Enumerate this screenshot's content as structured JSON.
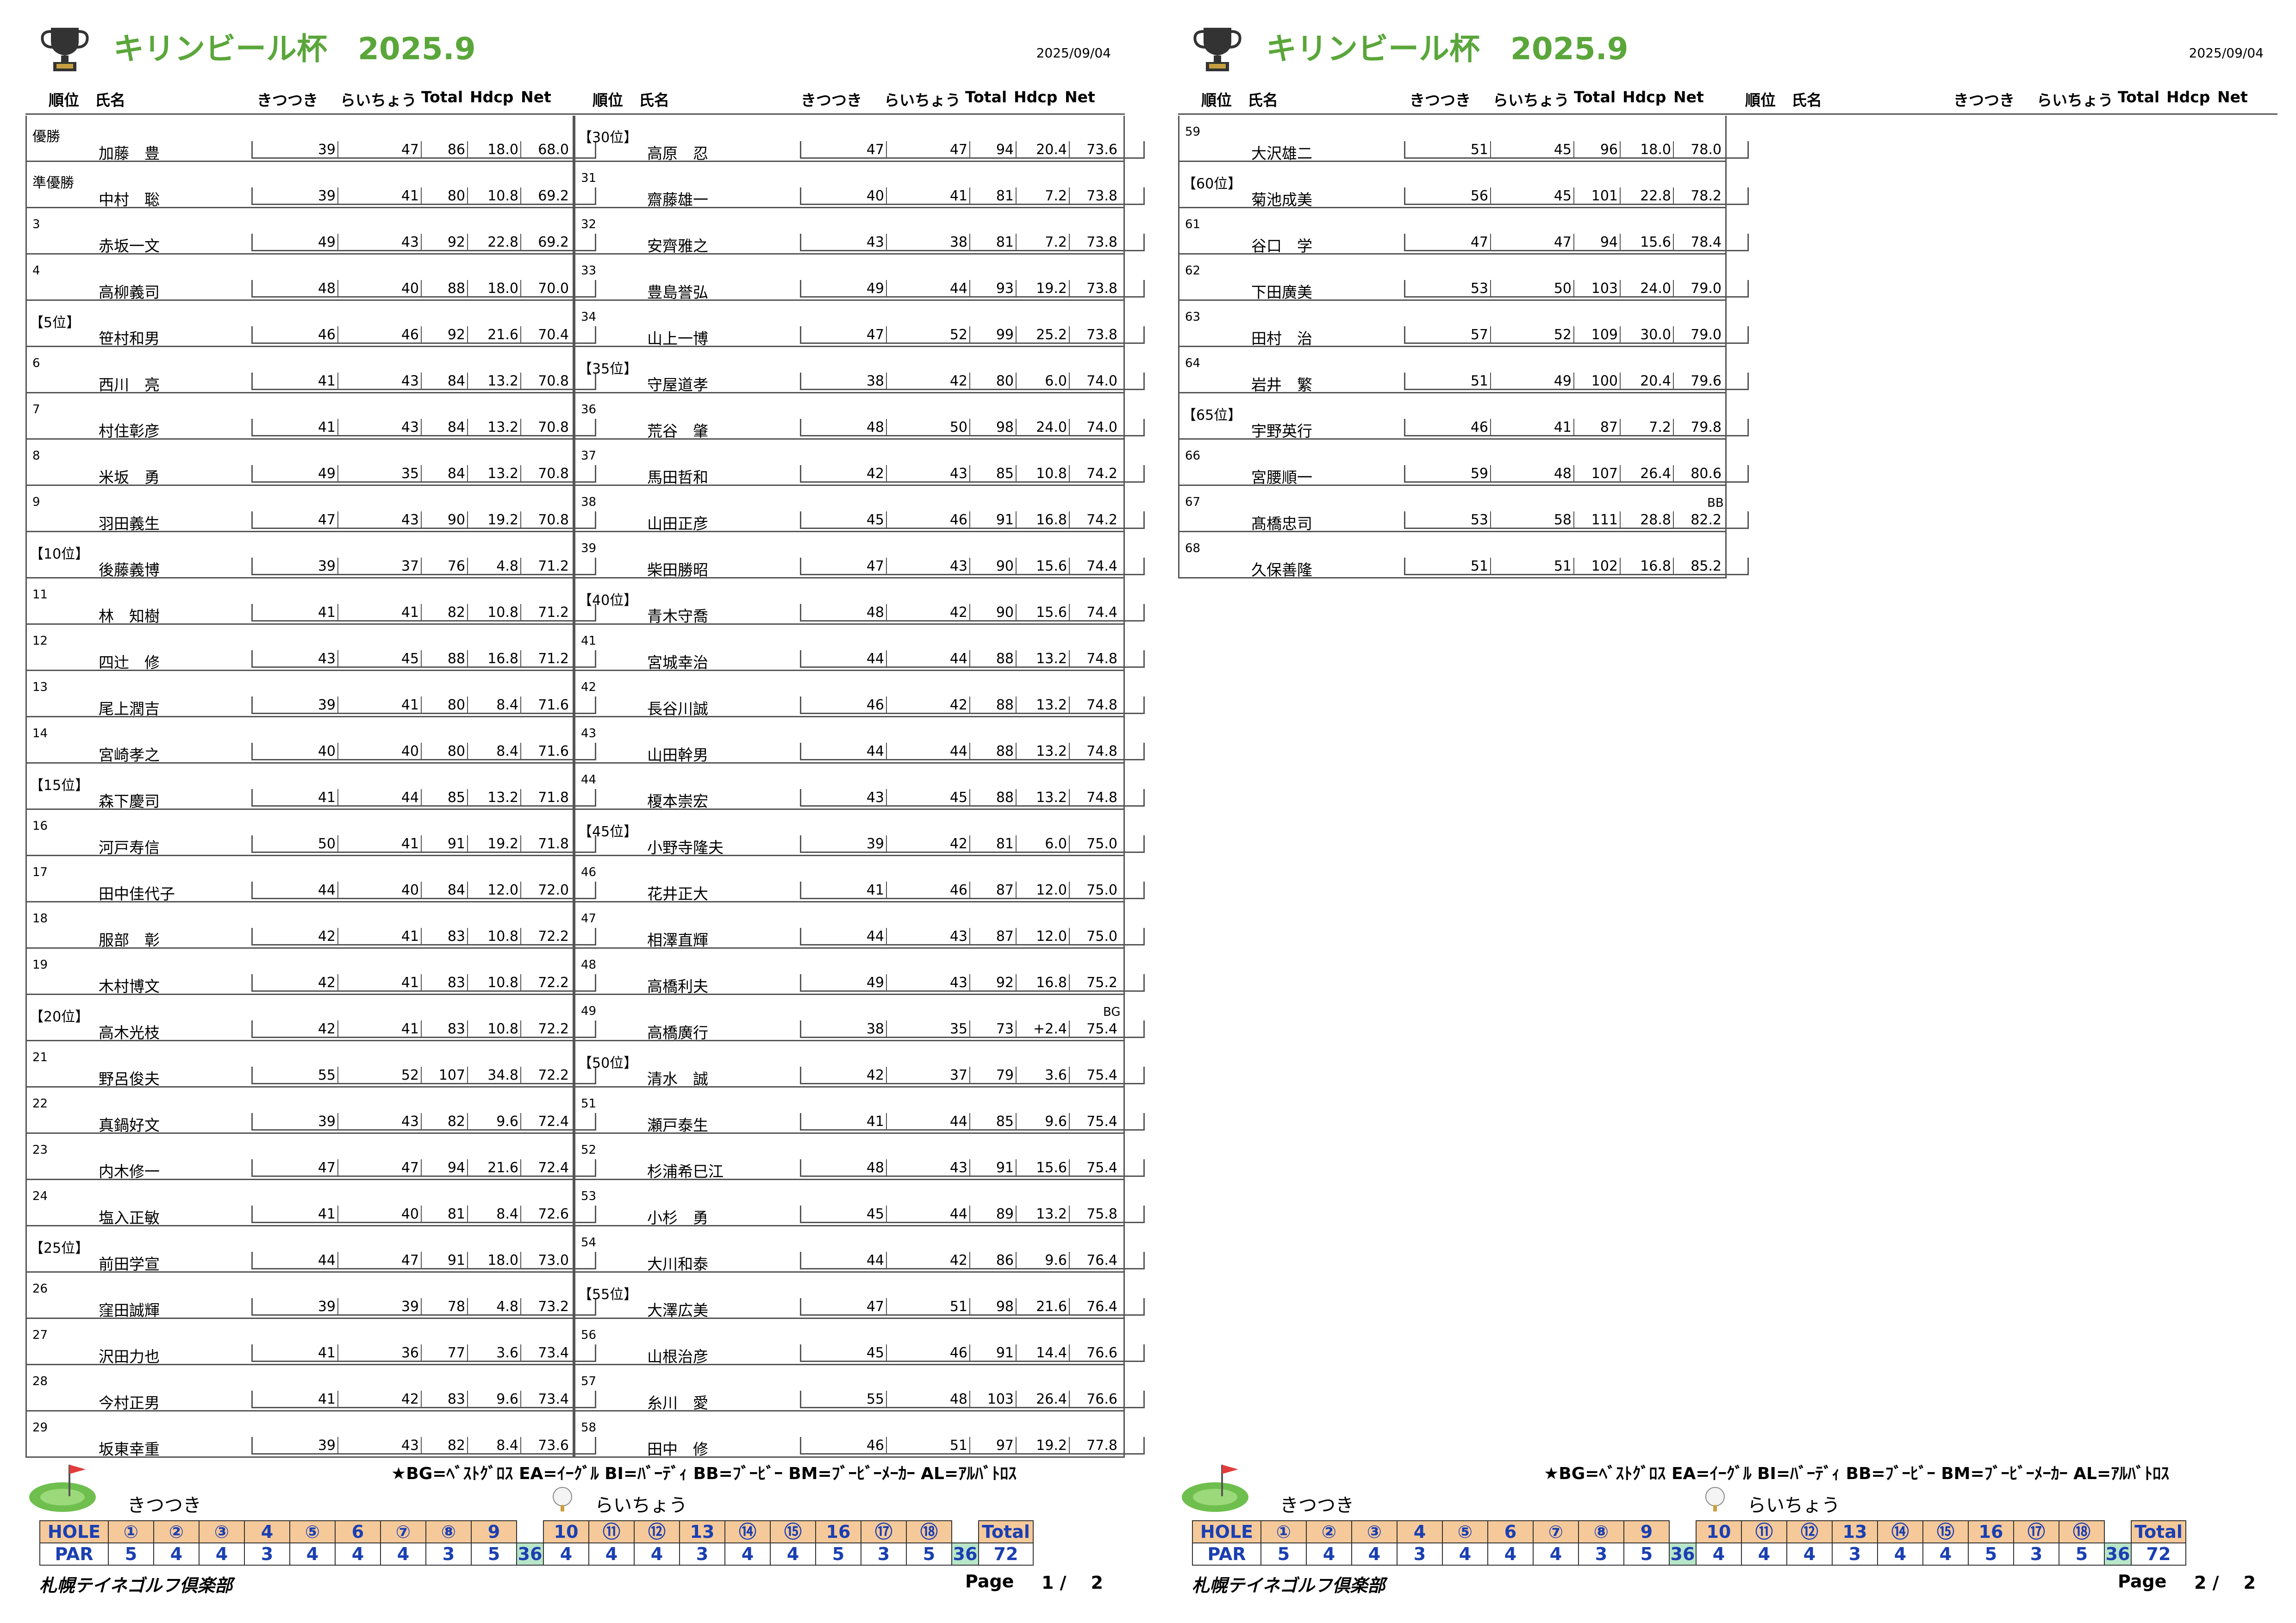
{
  "doc": {
    "title": "キリンビール杯　2025.9",
    "date": "2025/09/04",
    "headers": {
      "rank": "順位",
      "name": "氏名",
      "out": "きつつき",
      "in": "らいちょう",
      "total": "Total",
      "hdcp": "Hdcp",
      "net": "Net"
    },
    "legend": "★BG=ﾍﾞｽﾄｸﾞﾛｽ  EA=ｲｰｸﾞﾙ  BI=ﾊﾞｰﾃﾞｨ  BB=ﾌﾞｰﾋﾞｰ  BM=ﾌﾞｰﾋﾞｰﾒｰｶｰ  AL=ｱﾙﾊﾞﾄﾛｽ",
    "course_out": "きつつき",
    "course_in": "らいちょう",
    "hole_label": "HOLE",
    "par_label": "PAR",
    "holes_out": [
      "①",
      "②",
      "③",
      "4",
      "⑤",
      "6",
      "⑦",
      "⑧",
      "9"
    ],
    "holes_in": [
      "10",
      "⑪",
      "⑫",
      "13",
      "⑭",
      "⑮",
      "16",
      "⑰",
      "⑱"
    ],
    "par_out": [
      "5",
      "4",
      "4",
      "3",
      "4",
      "4",
      "4",
      "3",
      "5"
    ],
    "par_in": [
      "4",
      "4",
      "4",
      "3",
      "4",
      "4",
      "5",
      "3",
      "5"
    ],
    "out_total": "36",
    "in_total": "36",
    "total_label": "Total",
    "par_total": "72",
    "club": "札幌テイネゴルフ倶楽部",
    "page_label": "Page",
    "page1_no": "1 /    2",
    "page2_no": "2 /    2"
  },
  "rows": [
    {
      "rank": "優勝",
      "name": "加藤　豊",
      "out": "39",
      "in": "47",
      "total": "86",
      "hdcp": "18.0",
      "net": "68.0"
    },
    {
      "rank": "準優勝",
      "name": "中村　聡",
      "out": "39",
      "in": "41",
      "total": "80",
      "hdcp": "10.8",
      "net": "69.2"
    },
    {
      "rank": "3",
      "name": "赤坂一文",
      "out": "49",
      "in": "43",
      "total": "92",
      "hdcp": "22.8",
      "net": "69.2"
    },
    {
      "rank": "4",
      "name": "高柳義司",
      "out": "48",
      "in": "40",
      "total": "88",
      "hdcp": "18.0",
      "net": "70.0"
    },
    {
      "rank": "【5位】",
      "name": "笹村和男",
      "out": "46",
      "in": "46",
      "total": "92",
      "hdcp": "21.6",
      "net": "70.4"
    },
    {
      "rank": "6",
      "name": "西川　亮",
      "out": "41",
      "in": "43",
      "total": "84",
      "hdcp": "13.2",
      "net": "70.8"
    },
    {
      "rank": "7",
      "name": "村住彰彦",
      "out": "41",
      "in": "43",
      "total": "84",
      "hdcp": "13.2",
      "net": "70.8"
    },
    {
      "rank": "8",
      "name": "米坂　勇",
      "out": "49",
      "in": "35",
      "total": "84",
      "hdcp": "13.2",
      "net": "70.8"
    },
    {
      "rank": "9",
      "name": "羽田義生",
      "out": "47",
      "in": "43",
      "total": "90",
      "hdcp": "19.2",
      "net": "70.8"
    },
    {
      "rank": "【10位】",
      "name": "後藤義博",
      "out": "39",
      "in": "37",
      "total": "76",
      "hdcp": "4.8",
      "net": "71.2"
    },
    {
      "rank": "11",
      "name": "林　知樹",
      "out": "41",
      "in": "41",
      "total": "82",
      "hdcp": "10.8",
      "net": "71.2"
    },
    {
      "rank": "12",
      "name": "四辻　修",
      "out": "43",
      "in": "45",
      "total": "88",
      "hdcp": "16.8",
      "net": "71.2"
    },
    {
      "rank": "13",
      "name": "尾上潤吉",
      "out": "39",
      "in": "41",
      "total": "80",
      "hdcp": "8.4",
      "net": "71.6"
    },
    {
      "rank": "14",
      "name": "宮崎孝之",
      "out": "40",
      "in": "40",
      "total": "80",
      "hdcp": "8.4",
      "net": "71.6"
    },
    {
      "rank": "【15位】",
      "name": "森下慶司",
      "out": "41",
      "in": "44",
      "total": "85",
      "hdcp": "13.2",
      "net": "71.8"
    },
    {
      "rank": "16",
      "name": "河戸寿信",
      "out": "50",
      "in": "41",
      "total": "91",
      "hdcp": "19.2",
      "net": "71.8"
    },
    {
      "rank": "17",
      "name": "田中佳代子",
      "out": "44",
      "in": "40",
      "total": "84",
      "hdcp": "12.0",
      "net": "72.0"
    },
    {
      "rank": "18",
      "name": "服部　彰",
      "out": "42",
      "in": "41",
      "total": "83",
      "hdcp": "10.8",
      "net": "72.2"
    },
    {
      "rank": "19",
      "name": "木村博文",
      "out": "42",
      "in": "41",
      "total": "83",
      "hdcp": "10.8",
      "net": "72.2"
    },
    {
      "rank": "【20位】",
      "name": "高木光枝",
      "out": "42",
      "in": "41",
      "total": "83",
      "hdcp": "10.8",
      "net": "72.2"
    },
    {
      "rank": "21",
      "name": "野呂俊夫",
      "out": "55",
      "in": "52",
      "total": "107",
      "hdcp": "34.8",
      "net": "72.2"
    },
    {
      "rank": "22",
      "name": "真鍋好文",
      "out": "39",
      "in": "43",
      "total": "82",
      "hdcp": "9.6",
      "net": "72.4"
    },
    {
      "rank": "23",
      "name": "内木修一",
      "out": "47",
      "in": "47",
      "total": "94",
      "hdcp": "21.6",
      "net": "72.4"
    },
    {
      "rank": "24",
      "name": "塩入正敏",
      "out": "41",
      "in": "40",
      "total": "81",
      "hdcp": "8.4",
      "net": "72.6"
    },
    {
      "rank": "【25位】",
      "name": "前田学宣",
      "out": "44",
      "in": "47",
      "total": "91",
      "hdcp": "18.0",
      "net": "73.0"
    },
    {
      "rank": "26",
      "name": "窪田誠輝",
      "out": "39",
      "in": "39",
      "total": "78",
      "hdcp": "4.8",
      "net": "73.2"
    },
    {
      "rank": "27",
      "name": "沢田力也",
      "out": "41",
      "in": "36",
      "total": "77",
      "hdcp": "3.6",
      "net": "73.4"
    },
    {
      "rank": "28",
      "name": "今村正男",
      "out": "41",
      "in": "42",
      "total": "83",
      "hdcp": "9.6",
      "net": "73.4"
    },
    {
      "rank": "29",
      "name": "坂東幸重",
      "out": "39",
      "in": "43",
      "total": "82",
      "hdcp": "8.4",
      "net": "73.6"
    },
    {
      "rank": "【30位】",
      "name": "高原　忍",
      "out": "47",
      "in": "47",
      "total": "94",
      "hdcp": "20.4",
      "net": "73.6"
    },
    {
      "rank": "31",
      "name": "齋藤雄一",
      "out": "40",
      "in": "41",
      "total": "81",
      "hdcp": "7.2",
      "net": "73.8"
    },
    {
      "rank": "32",
      "name": "安齊雅之",
      "out": "43",
      "in": "38",
      "total": "81",
      "hdcp": "7.2",
      "net": "73.8"
    },
    {
      "rank": "33",
      "name": "豊島誉弘",
      "out": "49",
      "in": "44",
      "total": "93",
      "hdcp": "19.2",
      "net": "73.8"
    },
    {
      "rank": "34",
      "name": "山上一博",
      "out": "47",
      "in": "52",
      "total": "99",
      "hdcp": "25.2",
      "net": "73.8"
    },
    {
      "rank": "【35位】",
      "name": "守屋道孝",
      "out": "38",
      "in": "42",
      "total": "80",
      "hdcp": "6.0",
      "net": "74.0"
    },
    {
      "rank": "36",
      "name": "荒谷　肇",
      "out": "48",
      "in": "50",
      "total": "98",
      "hdcp": "24.0",
      "net": "74.0"
    },
    {
      "rank": "37",
      "name": "馬田哲和",
      "out": "42",
      "in": "43",
      "total": "85",
      "hdcp": "10.8",
      "net": "74.2"
    },
    {
      "rank": "38",
      "name": "山田正彦",
      "out": "45",
      "in": "46",
      "total": "91",
      "hdcp": "16.8",
      "net": "74.2"
    },
    {
      "rank": "39",
      "name": "柴田勝昭",
      "out": "47",
      "in": "43",
      "total": "90",
      "hdcp": "15.6",
      "net": "74.4"
    },
    {
      "rank": "【40位】",
      "name": "青木守喬",
      "out": "48",
      "in": "42",
      "total": "90",
      "hdcp": "15.6",
      "net": "74.4"
    },
    {
      "rank": "41",
      "name": "宮城幸治",
      "out": "44",
      "in": "44",
      "total": "88",
      "hdcp": "13.2",
      "net": "74.8"
    },
    {
      "rank": "42",
      "name": "長谷川誠",
      "out": "46",
      "in": "42",
      "total": "88",
      "hdcp": "13.2",
      "net": "74.8"
    },
    {
      "rank": "43",
      "name": "山田幹男",
      "out": "44",
      "in": "44",
      "total": "88",
      "hdcp": "13.2",
      "net": "74.8"
    },
    {
      "rank": "44",
      "name": "榎本崇宏",
      "out": "43",
      "in": "45",
      "total": "88",
      "hdcp": "13.2",
      "net": "74.8"
    },
    {
      "rank": "【45位】",
      "name": "小野寺隆夫",
      "out": "39",
      "in": "42",
      "total": "81",
      "hdcp": "6.0",
      "net": "75.0"
    },
    {
      "rank": "46",
      "name": "花井正大",
      "out": "41",
      "in": "46",
      "total": "87",
      "hdcp": "12.0",
      "net": "75.0"
    },
    {
      "rank": "47",
      "name": "相澤直輝",
      "out": "44",
      "in": "43",
      "total": "87",
      "hdcp": "12.0",
      "net": "75.0"
    },
    {
      "rank": "48",
      "name": "高橋利夫",
      "out": "49",
      "in": "43",
      "total": "92",
      "hdcp": "16.8",
      "net": "75.2"
    },
    {
      "rank": "49",
      "name": "高橋廣行",
      "out": "38",
      "in": "35",
      "total": "73",
      "hdcp": "+2.4",
      "net": "75.4",
      "note": "BG"
    },
    {
      "rank": "【50位】",
      "name": "清水　誠",
      "out": "42",
      "in": "37",
      "total": "79",
      "hdcp": "3.6",
      "net": "75.4"
    },
    {
      "rank": "51",
      "name": "瀬戸泰生",
      "out": "41",
      "in": "44",
      "total": "85",
      "hdcp": "9.6",
      "net": "75.4"
    },
    {
      "rank": "52",
      "name": "杉浦希巳江",
      "out": "48",
      "in": "43",
      "total": "91",
      "hdcp": "15.6",
      "net": "75.4"
    },
    {
      "rank": "53",
      "name": "小杉　勇",
      "out": "45",
      "in": "44",
      "total": "89",
      "hdcp": "13.2",
      "net": "75.8"
    },
    {
      "rank": "54",
      "name": "大川和泰",
      "out": "44",
      "in": "42",
      "total": "86",
      "hdcp": "9.6",
      "net": "76.4"
    },
    {
      "rank": "【55位】",
      "name": "大澤広美",
      "out": "47",
      "in": "51",
      "total": "98",
      "hdcp": "21.6",
      "net": "76.4"
    },
    {
      "rank": "56",
      "name": "山根治彦",
      "out": "45",
      "in": "46",
      "total": "91",
      "hdcp": "14.4",
      "net": "76.6"
    },
    {
      "rank": "57",
      "name": "糸川　愛",
      "out": "55",
      "in": "48",
      "total": "103",
      "hdcp": "26.4",
      "net": "76.6"
    },
    {
      "rank": "58",
      "name": "田中　修",
      "out": "46",
      "in": "51",
      "total": "97",
      "hdcp": "19.2",
      "net": "77.8"
    },
    {
      "rank": "59",
      "name": "大沢雄二",
      "out": "51",
      "in": "45",
      "total": "96",
      "hdcp": "18.0",
      "net": "78.0"
    },
    {
      "rank": "【60位】",
      "name": "菊池成美",
      "out": "56",
      "in": "45",
      "total": "101",
      "hdcp": "22.8",
      "net": "78.2"
    },
    {
      "rank": "61",
      "name": "谷口　学",
      "out": "47",
      "in": "47",
      "total": "94",
      "hdcp": "15.6",
      "net": "78.4"
    },
    {
      "rank": "62",
      "name": "下田廣美",
      "out": "53",
      "in": "50",
      "total": "103",
      "hdcp": "24.0",
      "net": "79.0"
    },
    {
      "rank": "63",
      "name": "田村　治",
      "out": "57",
      "in": "52",
      "total": "109",
      "hdcp": "30.0",
      "net": "79.0"
    },
    {
      "rank": "64",
      "name": "岩井　繁",
      "out": "51",
      "in": "49",
      "total": "100",
      "hdcp": "20.4",
      "net": "79.6"
    },
    {
      "rank": "【65位】",
      "name": "宇野英行",
      "out": "46",
      "in": "41",
      "total": "87",
      "hdcp": "7.2",
      "net": "79.8"
    },
    {
      "rank": "66",
      "name": "宮腰順一",
      "out": "59",
      "in": "48",
      "total": "107",
      "hdcp": "26.4",
      "net": "80.6"
    },
    {
      "rank": "67",
      "name": "髙橋忠司",
      "out": "53",
      "in": "58",
      "total": "111",
      "hdcp": "28.8",
      "net": "82.2",
      "note": "BB"
    },
    {
      "rank": "68",
      "name": "久保善隆",
      "out": "51",
      "in": "51",
      "total": "102",
      "hdcp": "16.8",
      "net": "85.2"
    }
  ]
}
